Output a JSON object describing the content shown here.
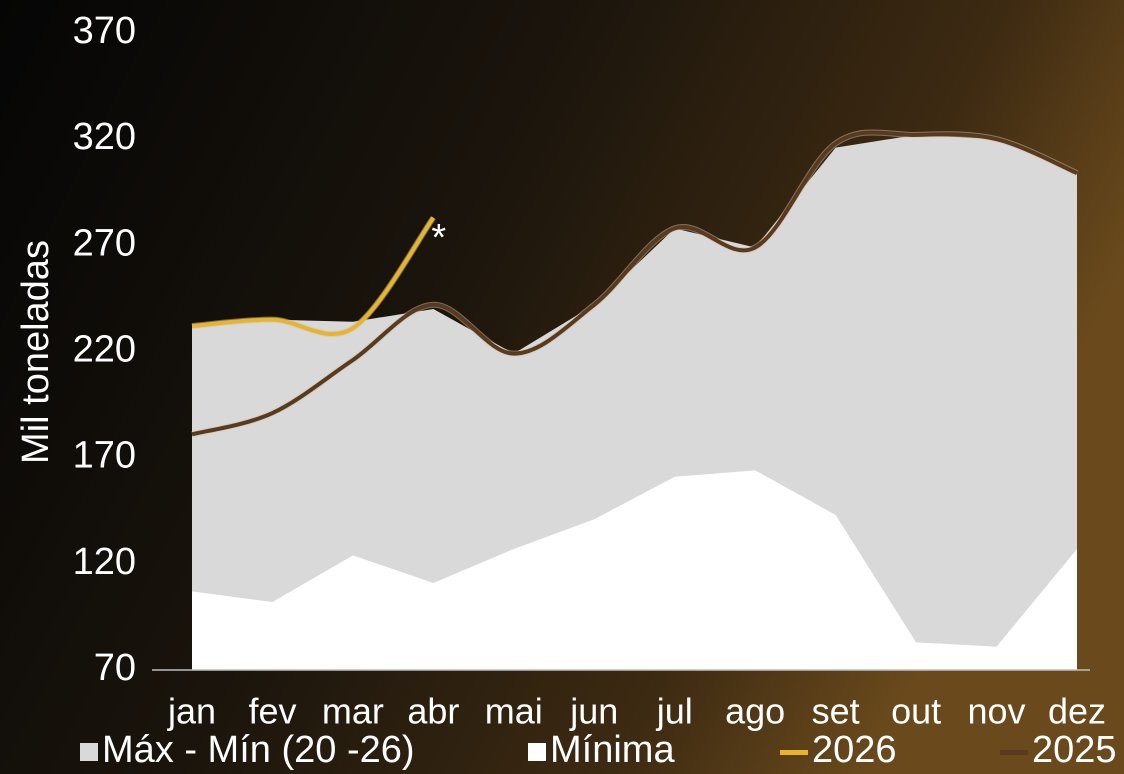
{
  "chart_data": {
    "type": "area-line",
    "y_label": "Mil toneladas",
    "annotation": "*",
    "categories": [
      "jan",
      "fev",
      "mar",
      "abr",
      "mai",
      "jun",
      "jul",
      "ago",
      "set",
      "out",
      "nov",
      "dez"
    ],
    "series": [
      {
        "name": "Máx - Mín (20 -26)",
        "kind": "area",
        "color": "#d9d9d9",
        "values": [
          232,
          235,
          234,
          240,
          219,
          242,
          278,
          269,
          316,
          322,
          320,
          304
        ]
      },
      {
        "name": "Mínima",
        "kind": "area",
        "color": "#ffffff",
        "values": [
          107,
          102,
          124,
          111,
          127,
          141,
          161,
          164,
          143,
          83,
          81,
          127
        ]
      },
      {
        "name": "2026",
        "kind": "line",
        "color": "#e8b42a",
        "values": [
          232,
          235,
          231,
          283,
          null,
          null,
          null,
          null,
          null,
          null,
          null,
          null
        ]
      },
      {
        "name": "2025",
        "kind": "line",
        "color": "#5a3a1c",
        "values": [
          181,
          191,
          216,
          242,
          219,
          242,
          278,
          269,
          318,
          322,
          320,
          304
        ]
      }
    ],
    "ylim": [
      70,
      370
    ],
    "yticks": [
      70,
      120,
      170,
      220,
      270,
      320,
      370
    ]
  }
}
